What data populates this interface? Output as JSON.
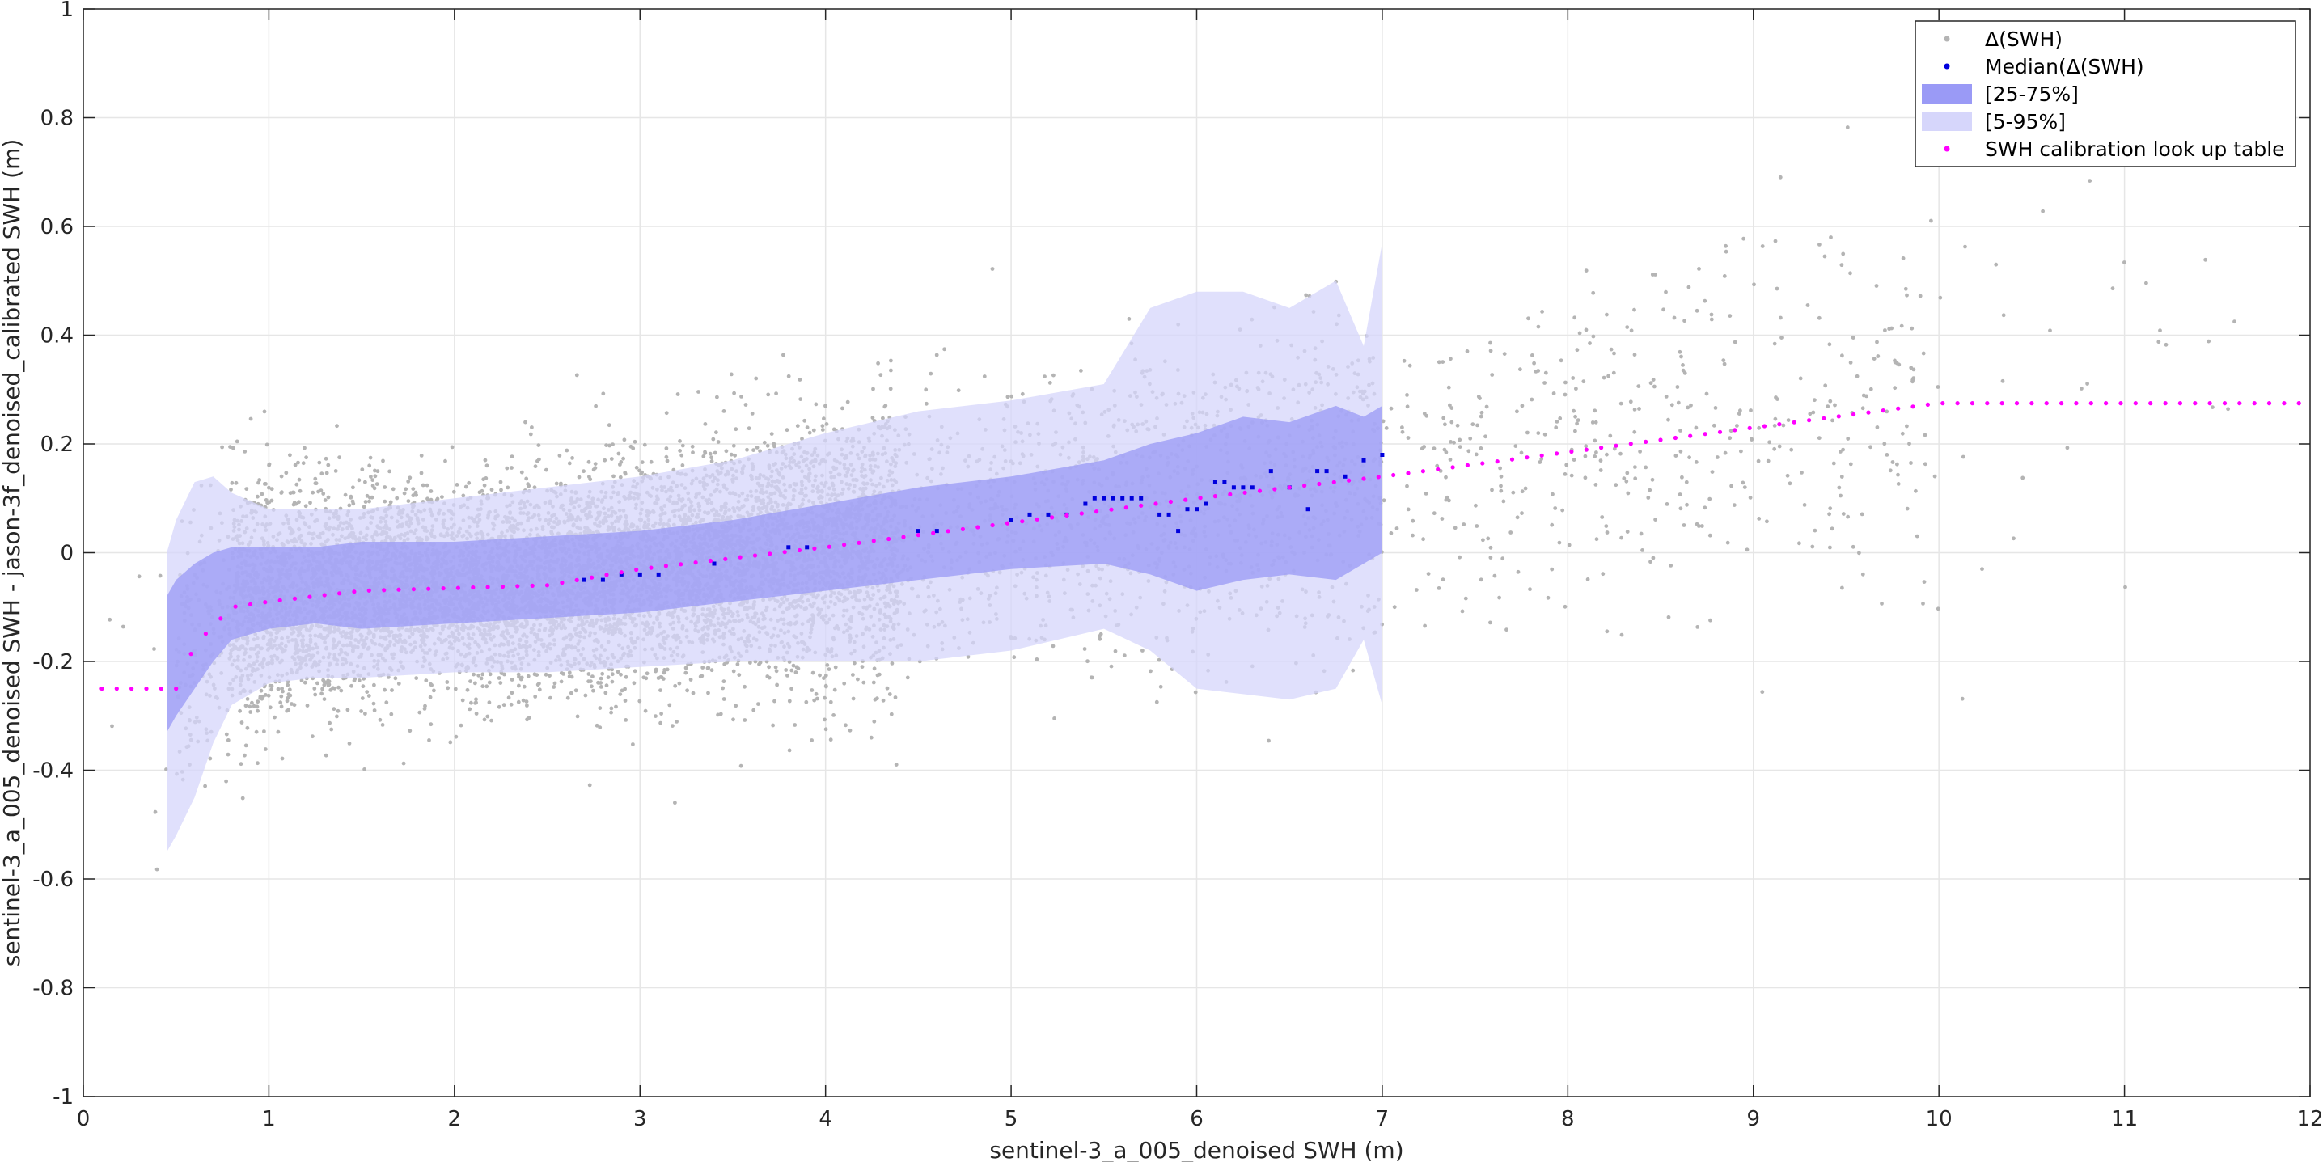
{
  "chart_data": {
    "type": "scatter",
    "title": "",
    "xlabel": "sentinel-3_a_005_denoised SWH (m)",
    "ylabel": "sentinel-3_a_005_denoised SWH - jason-3f_denoised_calibrated SWH (m)",
    "xlim": [
      0,
      12
    ],
    "ylim": [
      -1,
      1
    ],
    "xticks": [
      0,
      1,
      2,
      3,
      4,
      5,
      6,
      7,
      8,
      9,
      10,
      11,
      12
    ],
    "yticks": [
      -1,
      -0.8,
      -0.6,
      -0.4,
      -0.2,
      0,
      0.2,
      0.4,
      0.6,
      0.8,
      1
    ],
    "grid": true,
    "legend_position": "top-right",
    "legend": [
      {
        "label": "Δ(SWH)",
        "kind": "dot",
        "color": "#b4b4b4"
      },
      {
        "label": "Median(Δ(SWH)",
        "kind": "dot",
        "color": "#0000dd"
      },
      {
        "label": "[25-75%]",
        "kind": "patch",
        "color": "#9a9af6"
      },
      {
        "label": "[5-95%]",
        "kind": "patch",
        "color": "#d6d6fb"
      },
      {
        "label": "SWH calibration look up table",
        "kind": "dot",
        "color": "#ff00ff"
      }
    ],
    "colors": {
      "scatter": "#b4b4b4",
      "median": "#0000dd",
      "band_25_75": "#9a9af6",
      "band_5_95": "#d6d6fb",
      "lut": "#ff00ff",
      "grid": "#e6e6e6",
      "axes": "#262626"
    },
    "band_x": [
      0.45,
      0.5,
      0.6,
      0.7,
      0.8,
      1.0,
      1.25,
      1.5,
      2.0,
      2.5,
      3.0,
      3.5,
      4.0,
      4.5,
      5.0,
      5.5,
      5.75,
      6.0,
      6.25,
      6.5,
      6.75,
      6.9,
      7.0
    ],
    "band_25_75": {
      "lower": [
        -0.33,
        -0.3,
        -0.25,
        -0.2,
        -0.16,
        -0.14,
        -0.13,
        -0.14,
        -0.13,
        -0.12,
        -0.11,
        -0.09,
        -0.07,
        -0.05,
        -0.03,
        -0.02,
        -0.04,
        -0.07,
        -0.05,
        -0.04,
        -0.05,
        -0.02,
        0.0
      ],
      "upper": [
        -0.08,
        -0.05,
        -0.02,
        0.0,
        0.01,
        0.01,
        0.01,
        0.02,
        0.02,
        0.03,
        0.04,
        0.06,
        0.09,
        0.12,
        0.14,
        0.17,
        0.2,
        0.22,
        0.25,
        0.24,
        0.27,
        0.25,
        0.27
      ]
    },
    "band_5_95": {
      "lower": [
        -0.55,
        -0.52,
        -0.45,
        -0.35,
        -0.28,
        -0.24,
        -0.23,
        -0.23,
        -0.22,
        -0.22,
        -0.21,
        -0.2,
        -0.2,
        -0.2,
        -0.18,
        -0.14,
        -0.18,
        -0.25,
        -0.26,
        -0.27,
        -0.25,
        -0.16,
        -0.28
      ],
      "upper": [
        0.0,
        0.06,
        0.13,
        0.14,
        0.11,
        0.08,
        0.08,
        0.08,
        0.1,
        0.12,
        0.14,
        0.17,
        0.22,
        0.26,
        0.28,
        0.31,
        0.45,
        0.48,
        0.48,
        0.45,
        0.5,
        0.38,
        0.57
      ]
    },
    "median": {
      "x": [
        2.7,
        2.8,
        2.9,
        3.0,
        3.1,
        3.4,
        3.8,
        3.9,
        4.5,
        4.6,
        5.0,
        5.1,
        5.2,
        5.3,
        5.4,
        5.45,
        5.5,
        5.55,
        5.6,
        5.65,
        5.7,
        5.8,
        5.85,
        5.9,
        5.95,
        6.0,
        6.05,
        6.1,
        6.15,
        6.2,
        6.25,
        6.3,
        6.4,
        6.5,
        6.6,
        6.65,
        6.7,
        6.8,
        6.9,
        7.0
      ],
      "y": [
        -0.05,
        -0.05,
        -0.04,
        -0.04,
        -0.04,
        -0.02,
        0.01,
        0.01,
        0.04,
        0.04,
        0.06,
        0.07,
        0.07,
        0.07,
        0.09,
        0.1,
        0.1,
        0.1,
        0.1,
        0.1,
        0.1,
        0.07,
        0.07,
        0.04,
        0.08,
        0.08,
        0.09,
        0.13,
        0.13,
        0.12,
        0.12,
        0.12,
        0.15,
        0.12,
        0.08,
        0.15,
        0.15,
        0.14,
        0.17,
        0.18
      ]
    },
    "lut": {
      "x": [
        0.1,
        0.5,
        0.6,
        0.8,
        1.0,
        1.5,
        2.0,
        2.5,
        3.0,
        4.0,
        5.0,
        6.0,
        7.0,
        8.0,
        9.0,
        10.0,
        12.0
      ],
      "y": [
        -0.25,
        -0.25,
        -0.17,
        -0.1,
        -0.09,
        -0.07,
        -0.065,
        -0.06,
        -0.03,
        0.01,
        0.055,
        0.1,
        0.14,
        0.185,
        0.23,
        0.275,
        0.275
      ],
      "step": 0.08
    },
    "scatter": {
      "count": 9000,
      "note_source": "individual Δ(SWH) collocation points, dense between 0.5 and 7 m"
    }
  }
}
